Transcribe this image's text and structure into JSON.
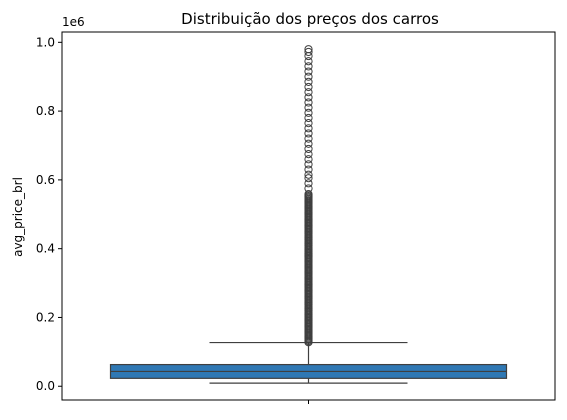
{
  "chart_data": {
    "type": "boxplot",
    "title": "Distribuição dos preços dos carros",
    "xlabel": "",
    "ylabel": "avg_price_brl",
    "offset_label": "1e6",
    "ylim": [
      -0.04,
      1.03
    ],
    "yticks": [
      0.0,
      0.2,
      0.4,
      0.6,
      0.8,
      1.0
    ],
    "ytick_labels": [
      "0.0",
      "0.2",
      "0.4",
      "0.6",
      "0.8",
      "1.0"
    ],
    "grid": false,
    "box": {
      "min": 0.009,
      "q1": 0.023,
      "median": 0.043,
      "q3": 0.063,
      "whisker_high": 0.127,
      "outliers_dense_range": [
        0.128,
        0.56
      ],
      "outliers_sparse": [
        0.575,
        0.59,
        0.605,
        0.615,
        0.63,
        0.645,
        0.66,
        0.675,
        0.69,
        0.705,
        0.72,
        0.735,
        0.75,
        0.765,
        0.78,
        0.795,
        0.81,
        0.825,
        0.84,
        0.855,
        0.87,
        0.885,
        0.9,
        0.915,
        0.93,
        0.945,
        0.96,
        0.972,
        0.98
      ]
    },
    "colors": {
      "box_fill": "#2f78b4",
      "line": "#3f3f3f"
    }
  }
}
